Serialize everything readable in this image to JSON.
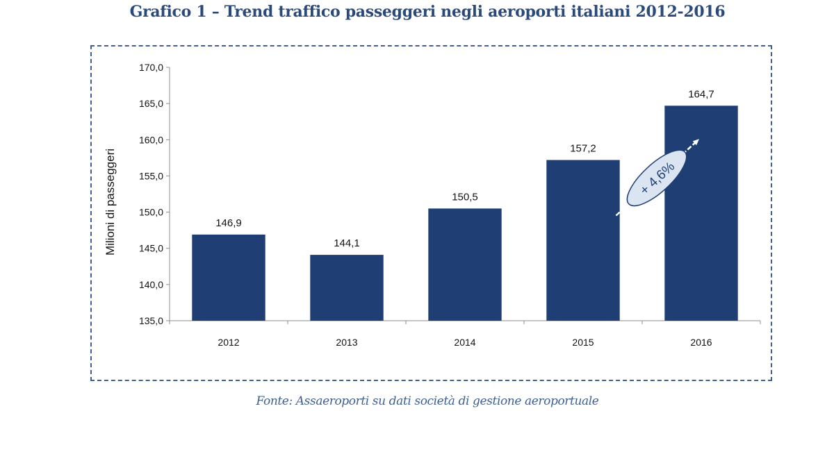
{
  "title": "Grafico 1 – Trend traffico passeggeri negli aeroporti italiani 2012-2016",
  "source": "Fonte: Assaeroporti su dati società di gestione aeroportuale",
  "colors": {
    "bar": "#1f3f74",
    "frame": "#3f5f8f",
    "title": "#2b4a7c",
    "annotation_fill": "#dbe5f1"
  },
  "chart_data": {
    "type": "bar",
    "categories": [
      "2012",
      "2013",
      "2014",
      "2015",
      "2016"
    ],
    "values": [
      146.9,
      144.1,
      150.5,
      157.2,
      164.7
    ],
    "value_labels": [
      "146,9",
      "144,1",
      "150,5",
      "157,2",
      "164,7"
    ],
    "ylabel": "Milioni di passeggeri",
    "ylim": [
      135,
      170
    ],
    "yticks": [
      135,
      140,
      145,
      150,
      155,
      160,
      165,
      170
    ],
    "ytick_labels": [
      "135,0",
      "140,0",
      "145,0",
      "150,0",
      "155,0",
      "160,0",
      "165,0",
      "170,0"
    ],
    "grid": false,
    "legend": "none",
    "annotation": {
      "text": "+ 4,6%"
    }
  }
}
